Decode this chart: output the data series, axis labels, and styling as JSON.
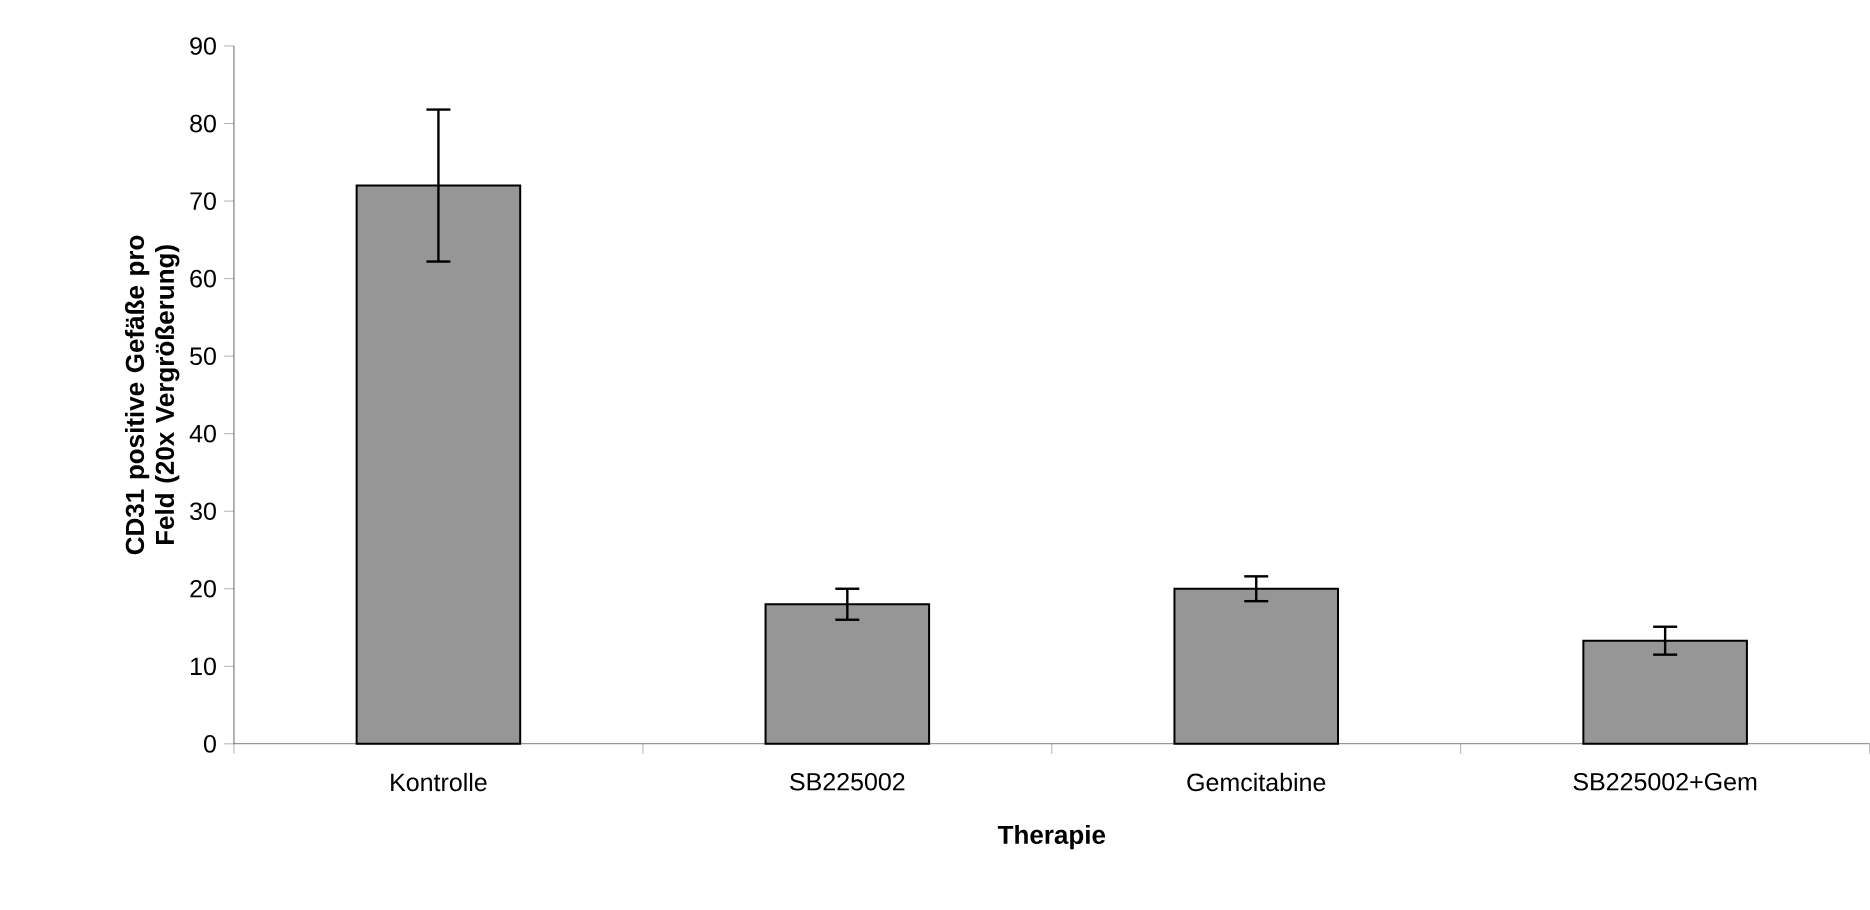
{
  "chart_data": {
    "type": "bar",
    "xlabel": "Therapie",
    "ylabel": "CD31 positive Gefäße pro Feld (20x Vergrößerung)",
    "categories": [
      "Kontrolle",
      "SB225002",
      "Gemcitabine",
      "SB225002+Gem"
    ],
    "values": [
      72,
      18,
      20,
      13.3
    ],
    "errors": [
      9.8,
      2,
      1.6,
      1.8
    ],
    "color": "#969696",
    "ylim": [
      0,
      90
    ],
    "yticks": [
      0,
      10,
      20,
      30,
      40,
      50,
      60,
      70,
      80,
      90
    ],
    "grid": false
  }
}
